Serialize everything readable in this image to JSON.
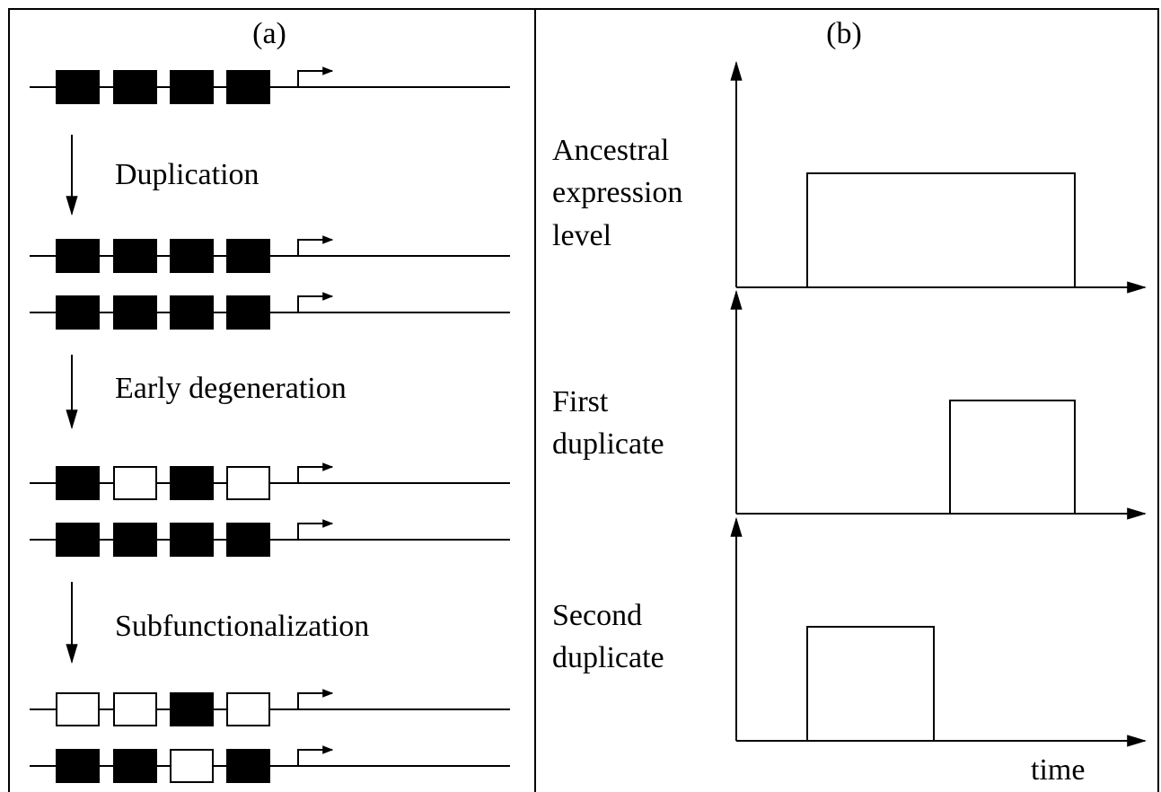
{
  "panel_a": {
    "label": "(a)",
    "steps": [
      "Duplication",
      "Early degeneration",
      "Subfunctionalization"
    ]
  },
  "panel_b": {
    "label": "(b)",
    "plots": [
      {
        "lines": [
          "Ancestral",
          "expression",
          "level"
        ]
      },
      {
        "lines": [
          "First",
          "duplicate"
        ]
      },
      {
        "lines": [
          "Second",
          "duplicate"
        ]
      }
    ],
    "x_label": "time"
  }
}
